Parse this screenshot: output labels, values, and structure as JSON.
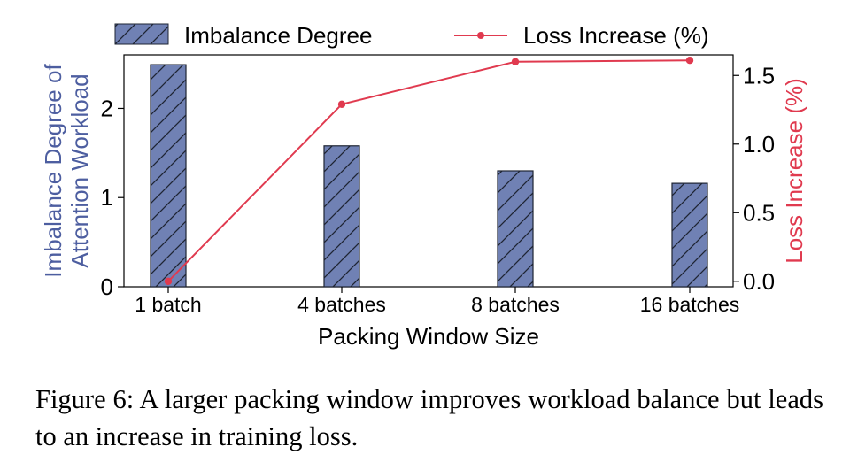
{
  "chart_data": {
    "type": "bar+line",
    "categories": [
      "1 batch",
      "4 batches",
      "8 batches",
      "16 batches"
    ],
    "series": [
      {
        "name": "Imbalance Degree",
        "kind": "bar",
        "axis": "left",
        "values": [
          2.49,
          1.58,
          1.3,
          1.16
        ],
        "color": "#7081b4",
        "hatch": "diagonal"
      },
      {
        "name": "Loss Increase (%)",
        "kind": "line",
        "axis": "right",
        "values": [
          0.0,
          1.29,
          1.6,
          1.61
        ],
        "color": "#e03a4f"
      }
    ],
    "xlabel": "Packing Window Size",
    "ylabel_left": "Imbalance Degree of Attention Workload",
    "ylabel_left_lines": [
      "Imbalance Degree of",
      "Attention Workload"
    ],
    "ylabel_right": "Loss Increase (%)",
    "ylim_left": [
      0,
      2.6
    ],
    "ylim_right": [
      -0.04,
      1.65
    ],
    "yticks_left": [
      "0",
      "1",
      "2"
    ],
    "yticks_left_values": [
      0,
      1,
      2
    ],
    "yticks_right": [
      "0.0",
      "0.5",
      "1.0",
      "1.5"
    ],
    "yticks_right_values": [
      0.0,
      0.5,
      1.0,
      1.5
    ],
    "legend_position": "top",
    "grid": false,
    "colors": {
      "left_axis_label": "#4d5ea0",
      "right_axis_label": "#e03a4f"
    }
  },
  "caption": "Figure 6: A larger packing window improves workload balance but leads to an increase in training loss."
}
